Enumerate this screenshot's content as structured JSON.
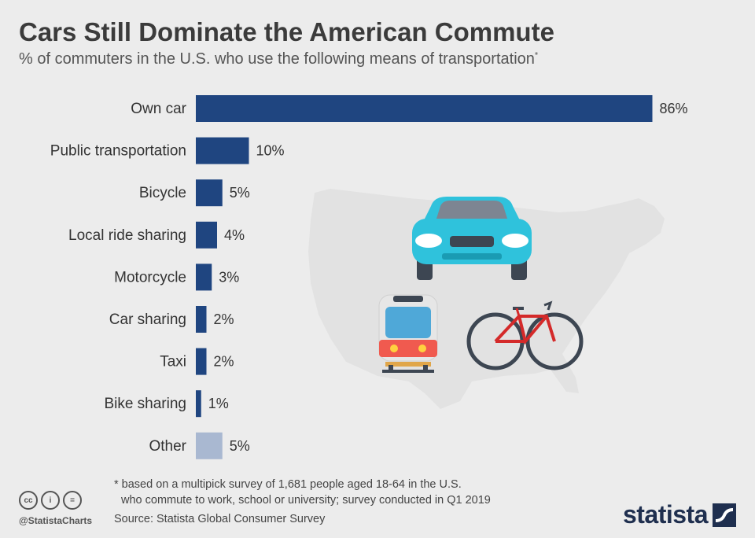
{
  "title": "Cars Still Dominate the American Commute",
  "subtitle": "% of commuters in the U.S. who use the following means of transportation",
  "subtitle_marker": "*",
  "colors": {
    "bar": "#1f4580",
    "other_bar": "#a9b8d1",
    "background": "#ececec",
    "map": "#e2e2e2"
  },
  "chart_data": {
    "type": "bar",
    "orientation": "horizontal",
    "categories": [
      "Own car",
      "Public transportation",
      "Bicycle",
      "Local ride sharing",
      "Motorcycle",
      "Car sharing",
      "Taxi",
      "Bike sharing",
      "Other"
    ],
    "values": [
      86,
      10,
      5,
      4,
      3,
      2,
      2,
      1,
      5
    ],
    "value_labels": [
      "86%",
      "10%",
      "5%",
      "4%",
      "3%",
      "2%",
      "2%",
      "1%",
      "5%"
    ],
    "xlim": [
      0,
      100
    ],
    "grid": false,
    "legend": "none"
  },
  "illustration_icons": [
    "us-map-icon",
    "car-icon",
    "train-icon",
    "bicycle-icon"
  ],
  "footnote": {
    "line1": "* based on a multipick survey of 1,681 people aged 18-64 in the U.S.",
    "line2": "who commute to work, school or university; survey conducted in Q1 2019"
  },
  "source": "Source: Statista Global Consumer Survey",
  "license_icons": {
    "cc": "cc",
    "by": "i",
    "nd": "="
  },
  "handle": "@StatistaCharts",
  "brand": "statista"
}
